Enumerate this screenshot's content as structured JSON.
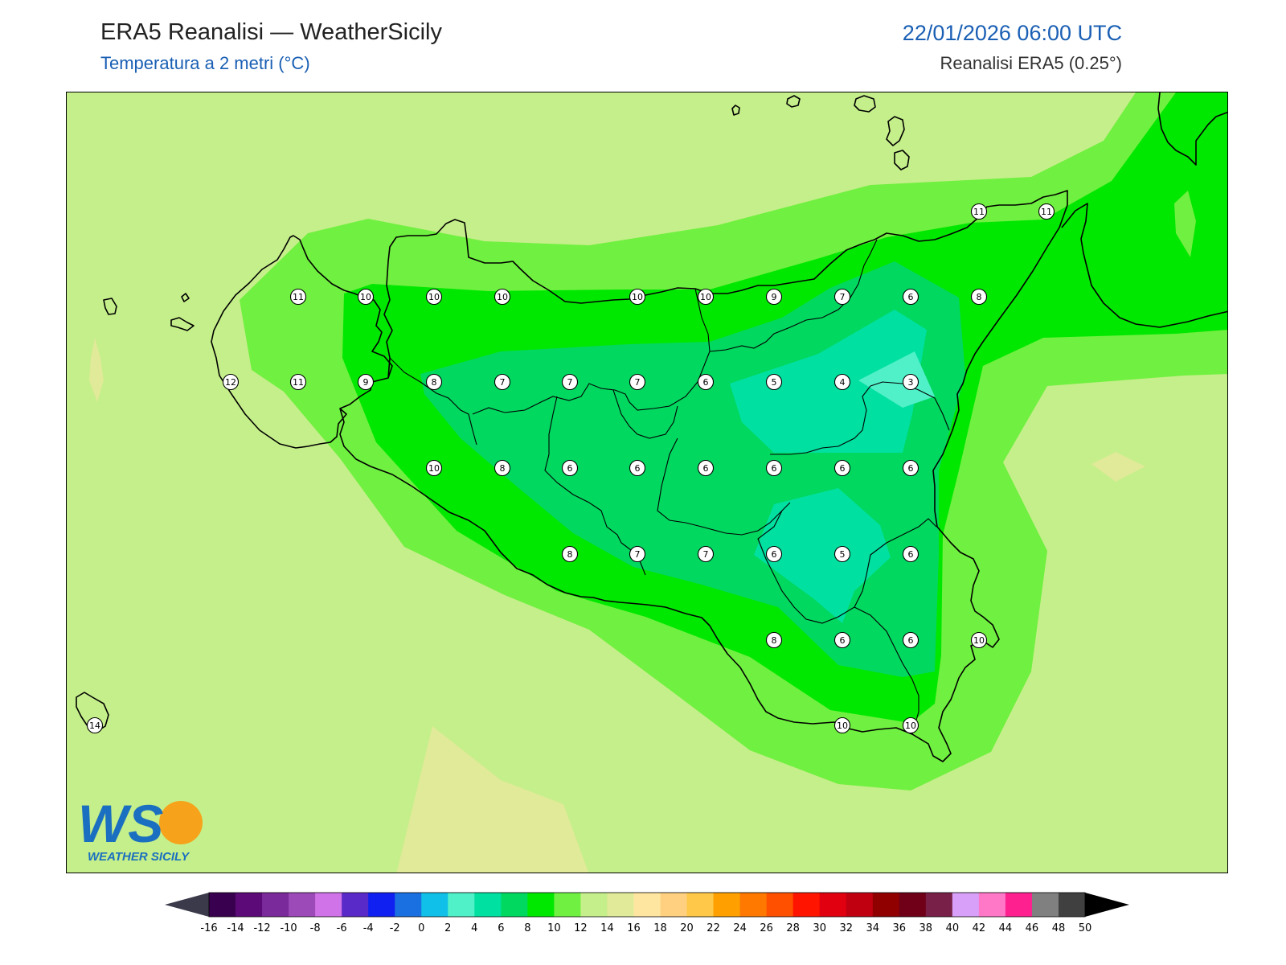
{
  "header": {
    "title": "ERA5 Reanalisi — WeatherSicily",
    "subtitle": "Temperatura a 2 metri (°C)",
    "datetime": "22/01/2026 06:00 UTC",
    "source": "Reanalisi ERA5 (0.25°)"
  },
  "logo": {
    "letters": "WS",
    "text": "WEATHER SICILY",
    "icon": "weather-sicily-logo"
  },
  "colors": {
    "sea_background": "#c5ef8a",
    "coastline": "#000000",
    "accent_blue": "#1a5fb4"
  },
  "colorbar": {
    "unit": "°C",
    "ticks": [
      "-16",
      "-14",
      "-12",
      "-10",
      "-8",
      "-6",
      "-4",
      "-2",
      "0",
      "2",
      "4",
      "6",
      "8",
      "10",
      "12",
      "14",
      "16",
      "18",
      "20",
      "22",
      "24",
      "26",
      "28",
      "30",
      "32",
      "34",
      "36",
      "38",
      "40",
      "42",
      "44",
      "46",
      "48",
      "50"
    ],
    "colors": [
      "#3a0050",
      "#5b0a78",
      "#7a2a9a",
      "#9b4ab8",
      "#d073e8",
      "#5a2ac8",
      "#1020f0",
      "#1a70e0",
      "#10c0e8",
      "#50f0c8",
      "#00e0a0",
      "#00d860",
      "#00e800",
      "#70f040",
      "#c5ef8a",
      "#e0ea98",
      "#ffe6a0",
      "#ffd080",
      "#ffc848",
      "#ffa000",
      "#ff7800",
      "#ff5000",
      "#ff1400",
      "#e00010",
      "#c00010",
      "#900000",
      "#700018",
      "#782048",
      "#d8a0f8",
      "#ff78c8",
      "#ff2090",
      "#808080",
      "#404040"
    ],
    "under_color": "#3a3a4a",
    "over_color": "#000000"
  },
  "stations": [
    {
      "v": "11"
    },
    {
      "v": "10"
    },
    {
      "v": "10"
    },
    {
      "v": "10"
    },
    {
      "v": "10"
    },
    {
      "v": "10"
    },
    {
      "v": "9"
    },
    {
      "v": "7"
    },
    {
      "v": "6"
    },
    {
      "v": "8"
    },
    {
      "v": "11"
    },
    {
      "v": "11"
    },
    {
      "v": "12"
    },
    {
      "v": "11"
    },
    {
      "v": "9"
    },
    {
      "v": "8"
    },
    {
      "v": "7"
    },
    {
      "v": "7"
    },
    {
      "v": "7"
    },
    {
      "v": "6"
    },
    {
      "v": "5"
    },
    {
      "v": "4"
    },
    {
      "v": "3"
    },
    {
      "v": "10"
    },
    {
      "v": "8"
    },
    {
      "v": "6"
    },
    {
      "v": "6"
    },
    {
      "v": "6"
    },
    {
      "v": "6"
    },
    {
      "v": "6"
    },
    {
      "v": "6"
    },
    {
      "v": "8"
    },
    {
      "v": "7"
    },
    {
      "v": "7"
    },
    {
      "v": "6"
    },
    {
      "v": "5"
    },
    {
      "v": "6"
    },
    {
      "v": "8"
    },
    {
      "v": "6"
    },
    {
      "v": "6"
    },
    {
      "v": "10"
    },
    {
      "v": "14"
    },
    {
      "v": "10"
    },
    {
      "v": "10"
    }
  ]
}
